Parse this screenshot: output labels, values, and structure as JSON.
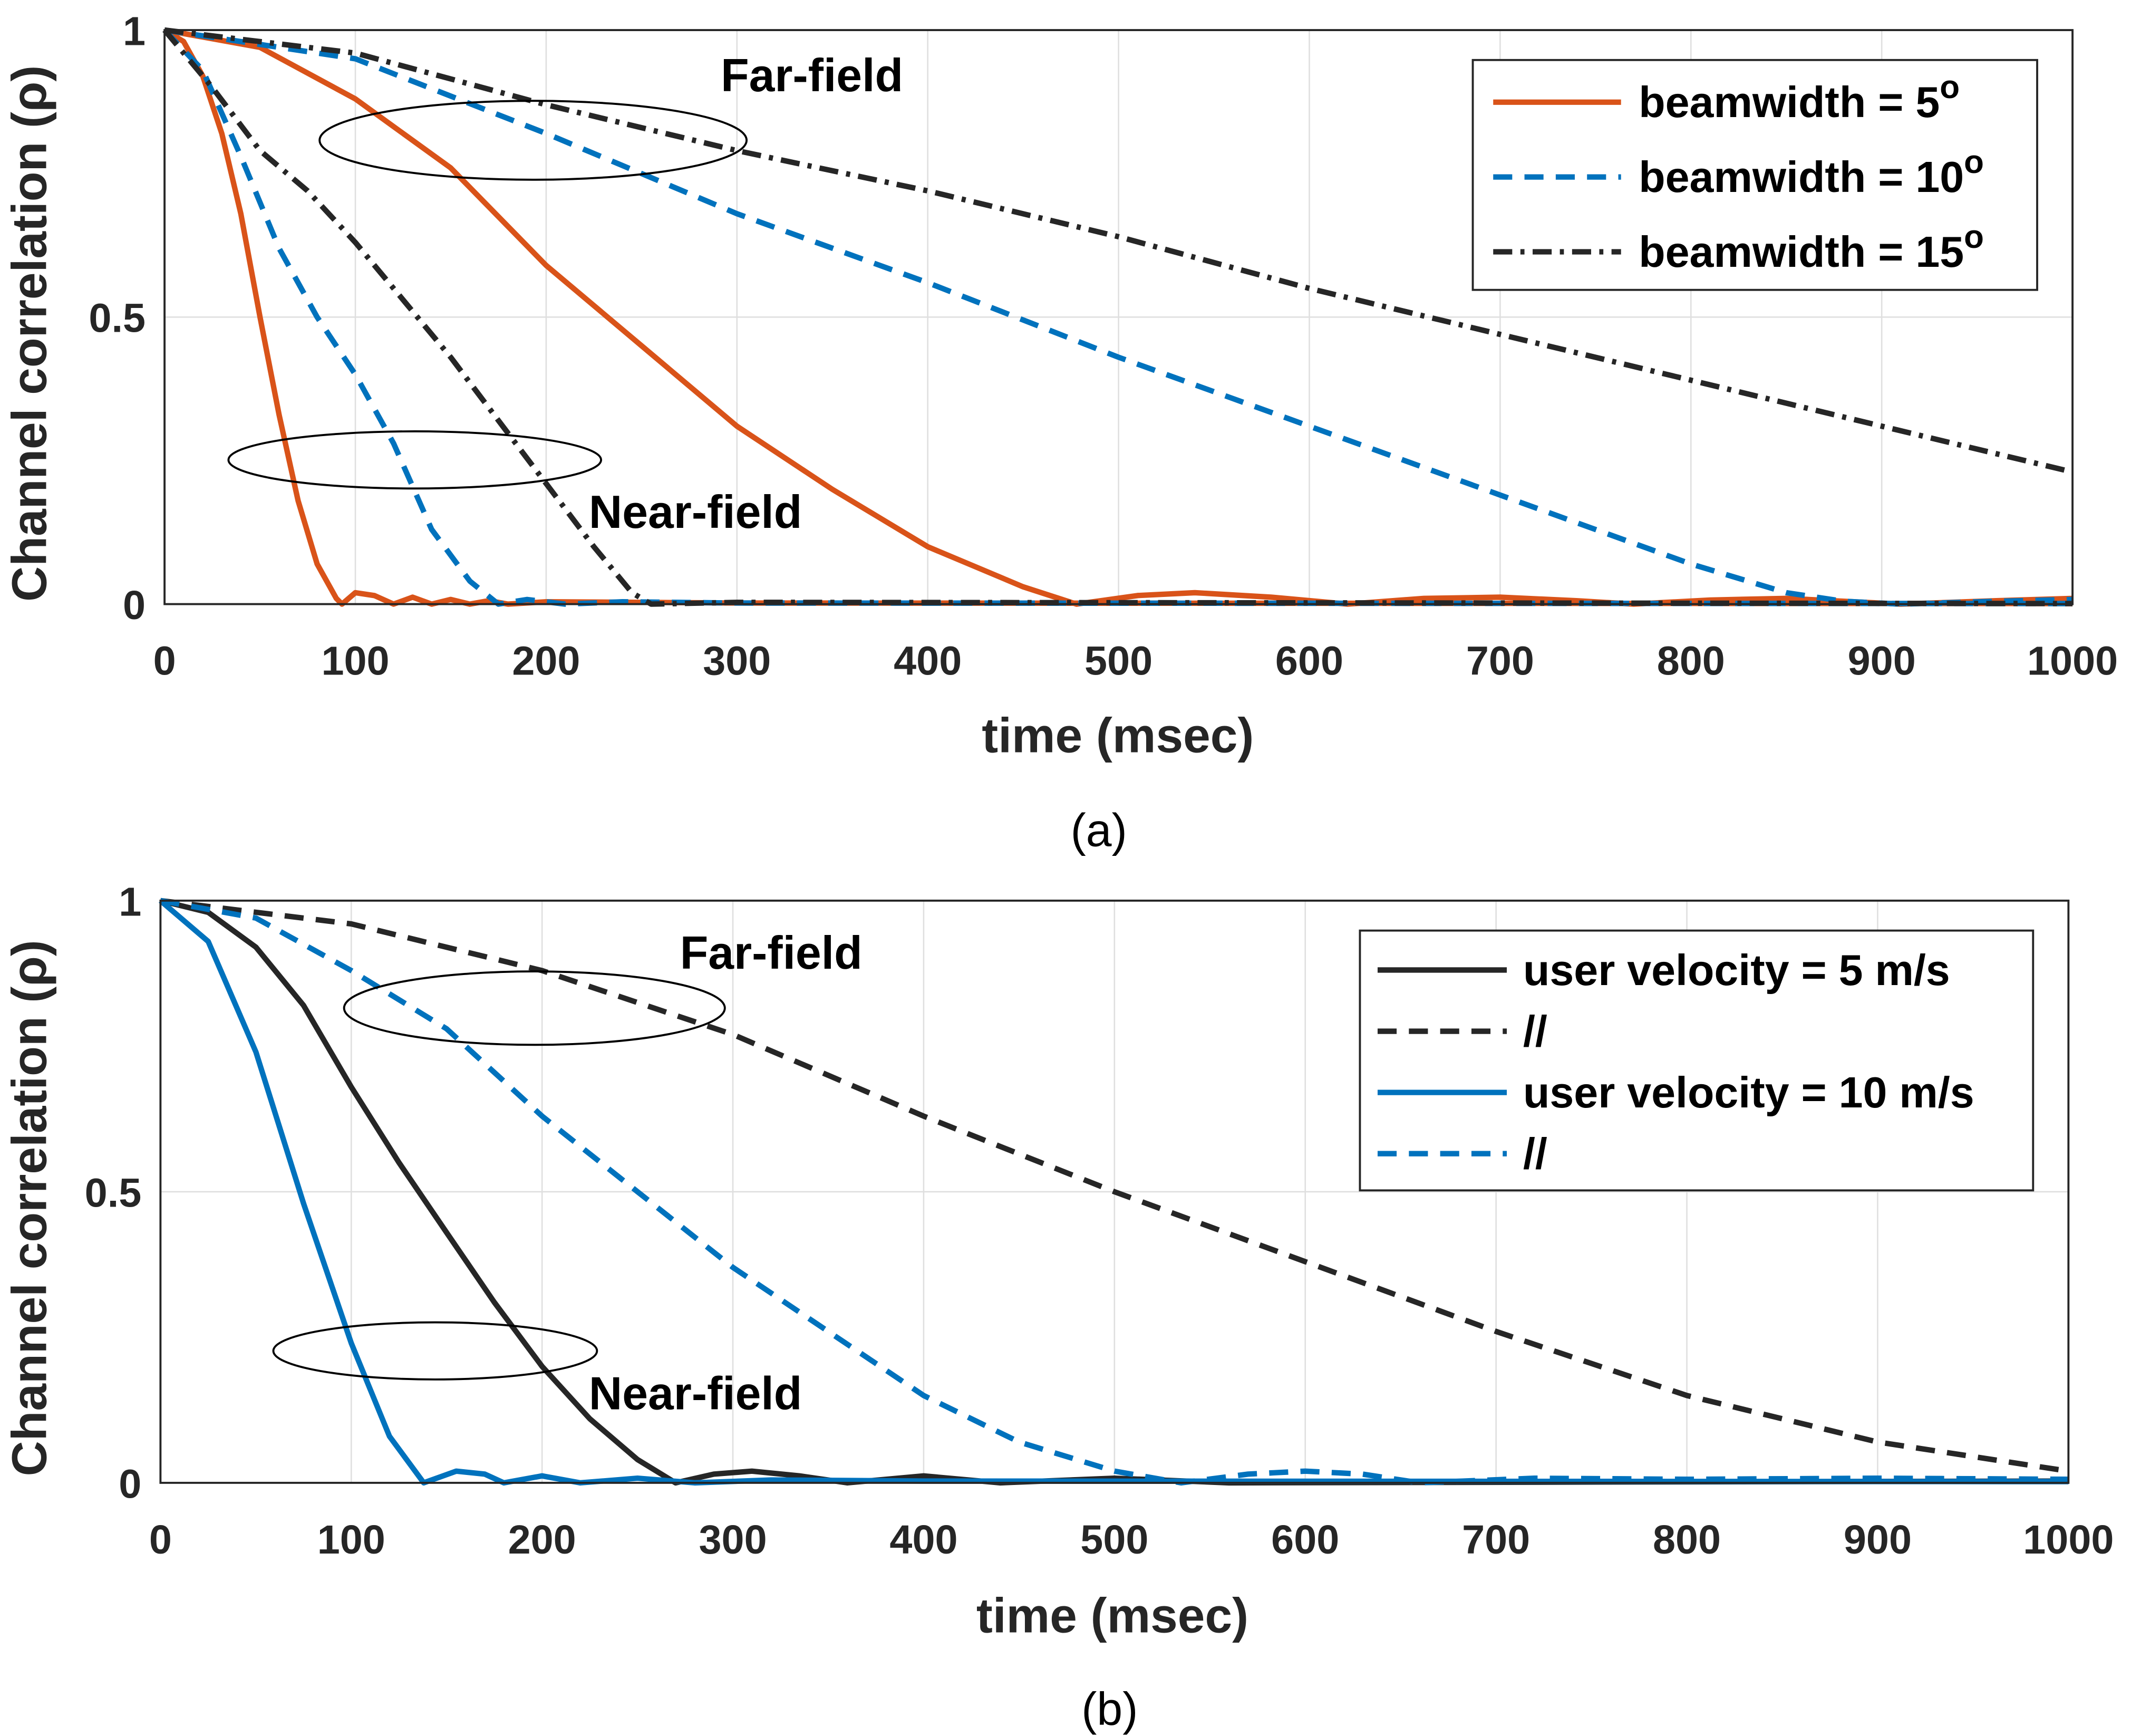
{
  "chart_data": [
    {
      "type": "line",
      "caption": "(a)",
      "xlabel": "time (msec)",
      "ylabel": "Channel correlation (ρ)",
      "xlim": [
        0,
        1000
      ],
      "ylim": [
        0,
        1
      ],
      "xticks": [
        "0",
        "100",
        "200",
        "300",
        "400",
        "500",
        "600",
        "700",
        "800",
        "900",
        "1000"
      ],
      "yticks": [
        "0",
        "0.5",
        "1"
      ],
      "grid": true,
      "legend_position": "top-right",
      "annotations": [
        "Far-field",
        "Near-field"
      ],
      "legend": [
        {
          "label": "beamwidth = 5",
          "sup": "o",
          "color": "#D95319",
          "style": "solid"
        },
        {
          "label": "beamwidth = 10",
          "sup": "o",
          "color": "#0072BD",
          "style": "dashed"
        },
        {
          "label": "beamwidth = 15",
          "sup": "o",
          "color": "#262626",
          "style": "dashdot"
        }
      ],
      "series": [
        {
          "name": "beamwidth 5° near-field",
          "legend": 0,
          "color": "#D95319",
          "style": "solid",
          "x": [
            0,
            10,
            20,
            30,
            40,
            50,
            60,
            70,
            80,
            90,
            93,
            100,
            110,
            120,
            130,
            140,
            150,
            160,
            170,
            180,
            200,
            250,
            300,
            1000
          ],
          "y": [
            1,
            0.98,
            0.92,
            0.82,
            0.68,
            0.5,
            0.33,
            0.18,
            0.07,
            0.01,
            0,
            0.02,
            0.015,
            0,
            0.012,
            0,
            0.008,
            0,
            0.006,
            0,
            0.004,
            0.003,
            0.002,
            0.001
          ]
        },
        {
          "name": "beamwidth 5° far-field",
          "legend": 0,
          "color": "#D95319",
          "style": "solid",
          "x": [
            0,
            50,
            100,
            150,
            200,
            250,
            300,
            350,
            400,
            450,
            478,
            510,
            540,
            580,
            620,
            660,
            700,
            740,
            770,
            810,
            850,
            910,
            960,
            1000
          ],
          "y": [
            1,
            0.97,
            0.88,
            0.76,
            0.59,
            0.45,
            0.31,
            0.2,
            0.1,
            0.03,
            0,
            0.015,
            0.02,
            0.012,
            0,
            0.01,
            0.012,
            0.006,
            0,
            0.007,
            0.01,
            0,
            0.006,
            0.01
          ]
        },
        {
          "name": "beamwidth 10° near-field",
          "legend": 1,
          "color": "#0072BD",
          "style": "dashed",
          "x": [
            0,
            20,
            40,
            60,
            80,
            100,
            120,
            140,
            160,
            175,
            190,
            210,
            240,
            300,
            1000
          ],
          "y": [
            1,
            0.93,
            0.78,
            0.62,
            0.5,
            0.4,
            0.28,
            0.13,
            0.04,
            0,
            0.008,
            0,
            0.004,
            0.002,
            0.001
          ]
        },
        {
          "name": "beamwidth 10° far-field",
          "legend": 1,
          "color": "#0072BD",
          "style": "dashed",
          "x": [
            0,
            100,
            200,
            300,
            400,
            500,
            600,
            700,
            800,
            850,
            880,
            910,
            960,
            1000
          ],
          "y": [
            1,
            0.95,
            0.82,
            0.68,
            0.56,
            0.43,
            0.31,
            0.19,
            0.07,
            0.02,
            0.005,
            0,
            0.005,
            0.008
          ]
        },
        {
          "name": "beamwidth 15° near-field",
          "legend": 2,
          "color": "#262626",
          "style": "dashdot",
          "x": [
            0,
            25,
            50,
            75,
            100,
            125,
            150,
            175,
            200,
            225,
            245,
            255,
            300,
            1000
          ],
          "y": [
            1,
            0.9,
            0.79,
            0.72,
            0.63,
            0.53,
            0.43,
            0.32,
            0.21,
            0.1,
            0.02,
            0,
            0.003,
            0.001
          ]
        },
        {
          "name": "beamwidth 15° far-field",
          "legend": 2,
          "color": "#262626",
          "style": "dashdot",
          "x": [
            0,
            100,
            200,
            300,
            400,
            500,
            600,
            700,
            800,
            900,
            1000
          ],
          "y": [
            1,
            0.96,
            0.87,
            0.79,
            0.72,
            0.64,
            0.55,
            0.47,
            0.39,
            0.31,
            0.23
          ]
        }
      ]
    },
    {
      "type": "line",
      "caption": "(b)",
      "xlabel": "time (msec)",
      "ylabel": "Channel correlation (ρ)",
      "xlim": [
        0,
        1000
      ],
      "ylim": [
        0,
        1
      ],
      "xticks": [
        "0",
        "100",
        "200",
        "300",
        "400",
        "500",
        "600",
        "700",
        "800",
        "900",
        "1000"
      ],
      "yticks": [
        "0",
        "0.5",
        "1"
      ],
      "grid": true,
      "legend_position": "top-right",
      "annotations": [
        "Far-field",
        "Near-field"
      ],
      "legend": [
        {
          "label": "user velocity = 5 m/s",
          "sup": "",
          "color": "#262626",
          "style": "solid"
        },
        {
          "label": "//",
          "sup": "",
          "color": "#262626",
          "style": "dashed"
        },
        {
          "label": "user velocity = 10 m/s",
          "sup": "",
          "color": "#0072BD",
          "style": "solid"
        },
        {
          "label": "//",
          "sup": "",
          "color": "#0072BD",
          "style": "dashed"
        }
      ],
      "series": [
        {
          "name": "5 m/s near-field",
          "legend": 0,
          "color": "#262626",
          "style": "solid",
          "x": [
            0,
            25,
            50,
            75,
            100,
            125,
            150,
            175,
            200,
            225,
            250,
            270,
            290,
            310,
            335,
            360,
            400,
            440,
            500,
            560,
            1000
          ],
          "y": [
            1,
            0.98,
            0.92,
            0.82,
            0.68,
            0.55,
            0.43,
            0.31,
            0.2,
            0.11,
            0.04,
            0,
            0.015,
            0.02,
            0.012,
            0,
            0.012,
            0,
            0.008,
            0,
            0.003
          ]
        },
        {
          "name": "5 m/s far-field",
          "legend": 1,
          "color": "#262626",
          "style": "dashed",
          "x": [
            0,
            100,
            200,
            300,
            400,
            500,
            600,
            700,
            800,
            900,
            1000
          ],
          "y": [
            1,
            0.96,
            0.88,
            0.77,
            0.63,
            0.5,
            0.38,
            0.26,
            0.15,
            0.07,
            0.02
          ]
        },
        {
          "name": "10 m/s near-field",
          "legend": 2,
          "color": "#0072BD",
          "style": "solid",
          "x": [
            0,
            25,
            50,
            75,
            100,
            120,
            138,
            155,
            170,
            180,
            200,
            220,
            250,
            280,
            320,
            400,
            1000
          ],
          "y": [
            1,
            0.93,
            0.74,
            0.48,
            0.24,
            0.08,
            0,
            0.02,
            0.015,
            0,
            0.012,
            0,
            0.008,
            0,
            0.005,
            0.003,
            0.002
          ]
        },
        {
          "name": "10 m/s far-field",
          "legend": 3,
          "color": "#0072BD",
          "style": "dashed",
          "x": [
            0,
            50,
            100,
            150,
            200,
            250,
            300,
            350,
            400,
            450,
            500,
            535,
            570,
            600,
            630,
            660,
            720,
            800,
            900,
            1000
          ],
          "y": [
            1,
            0.97,
            0.88,
            0.78,
            0.63,
            0.5,
            0.37,
            0.26,
            0.15,
            0.07,
            0.02,
            0,
            0.015,
            0.02,
            0.015,
            0,
            0.008,
            0.006,
            0.008,
            0.006
          ]
        }
      ]
    }
  ]
}
